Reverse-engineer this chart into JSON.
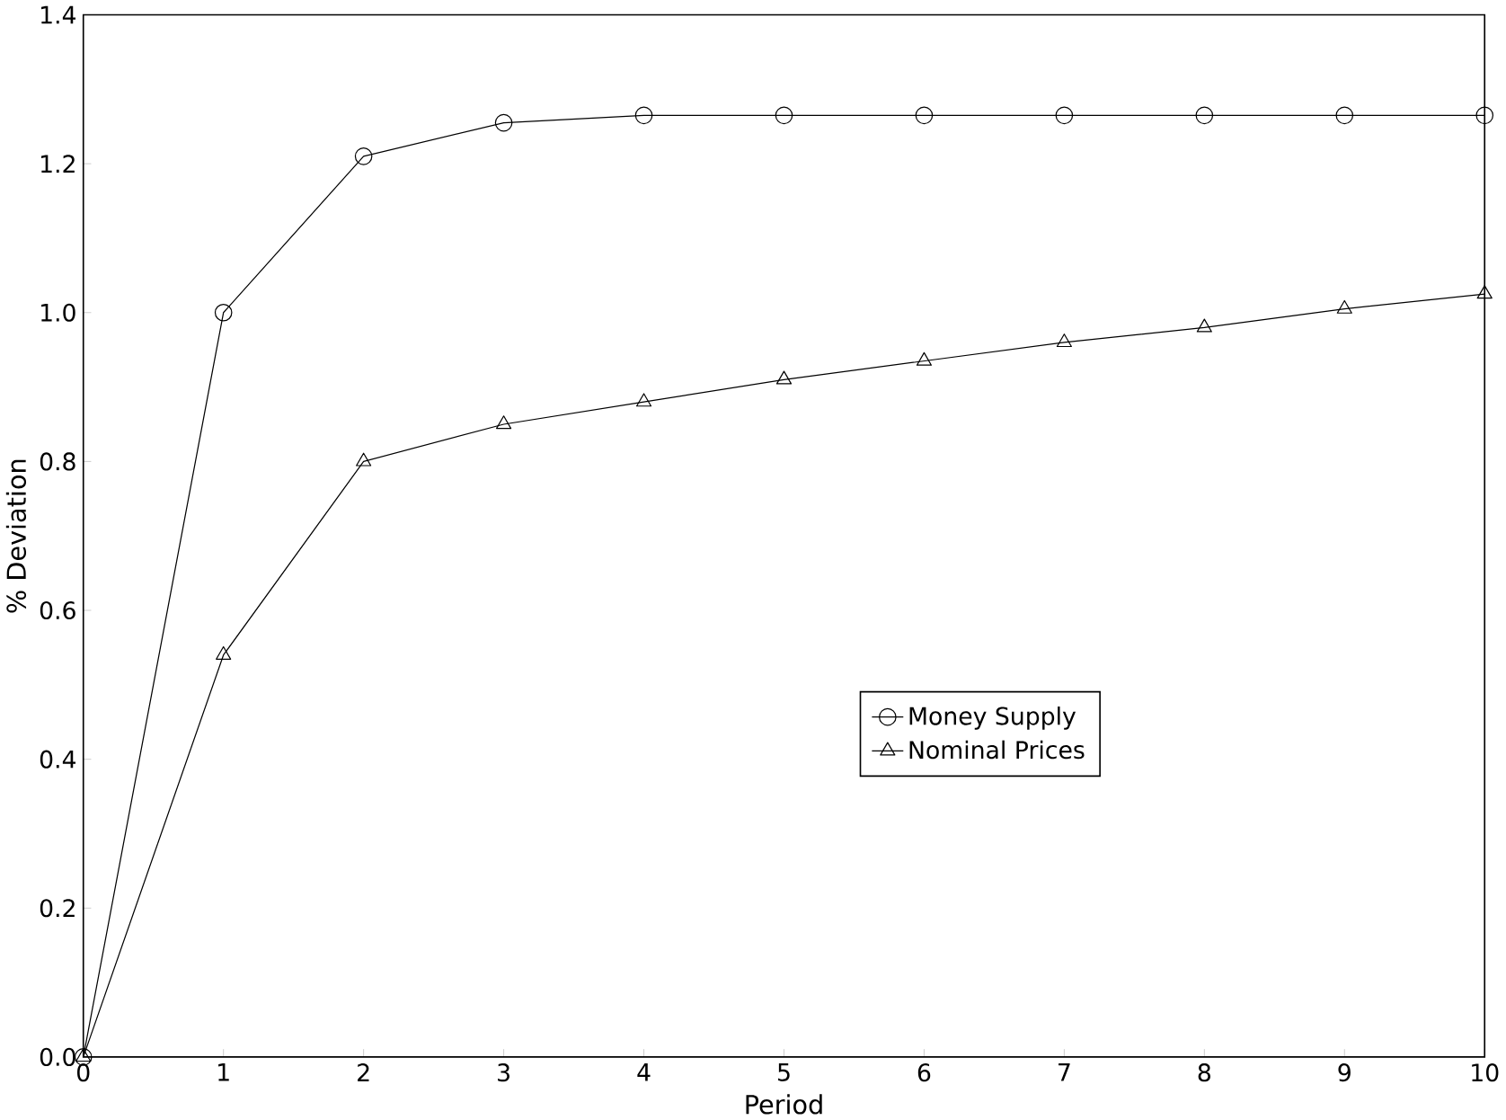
{
  "chart_data": {
    "type": "line",
    "xlabel": "Period",
    "ylabel": "% Deviation",
    "x": [
      0,
      1,
      2,
      3,
      4,
      5,
      6,
      7,
      8,
      9,
      10
    ],
    "series": [
      {
        "name": "Money Supply",
        "color": "#000000",
        "marker": "circle",
        "values": [
          0,
          1.0,
          1.21,
          1.255,
          1.265,
          1.265,
          1.265,
          1.265,
          1.265,
          1.265,
          1.265
        ]
      },
      {
        "name": "Nominal Prices",
        "color": "#000000",
        "marker": "triangle",
        "values": [
          0,
          0.54,
          0.8,
          0.85,
          0.88,
          0.91,
          0.935,
          0.96,
          0.98,
          1.005,
          1.025
        ]
      }
    ],
    "xlim": [
      0,
      10
    ],
    "ylim": [
      0,
      1.4
    ],
    "xticks": [
      0,
      1,
      2,
      3,
      4,
      5,
      6,
      7,
      8,
      9,
      10
    ],
    "yticks": [
      {
        "value": 0,
        "label": "0.0"
      },
      {
        "value": 0.2,
        "label": "0.2"
      },
      {
        "value": 0.4,
        "label": "0.4"
      },
      {
        "value": 0.6,
        "label": "0.6"
      },
      {
        "value": 0.8,
        "label": "0.8"
      },
      {
        "value": 1.0,
        "label": "1.0"
      },
      {
        "value": 1.2,
        "label": "1.2"
      },
      {
        "value": 1.4,
        "label": "1.4"
      }
    ],
    "legend": "right",
    "line_style": "solid"
  }
}
